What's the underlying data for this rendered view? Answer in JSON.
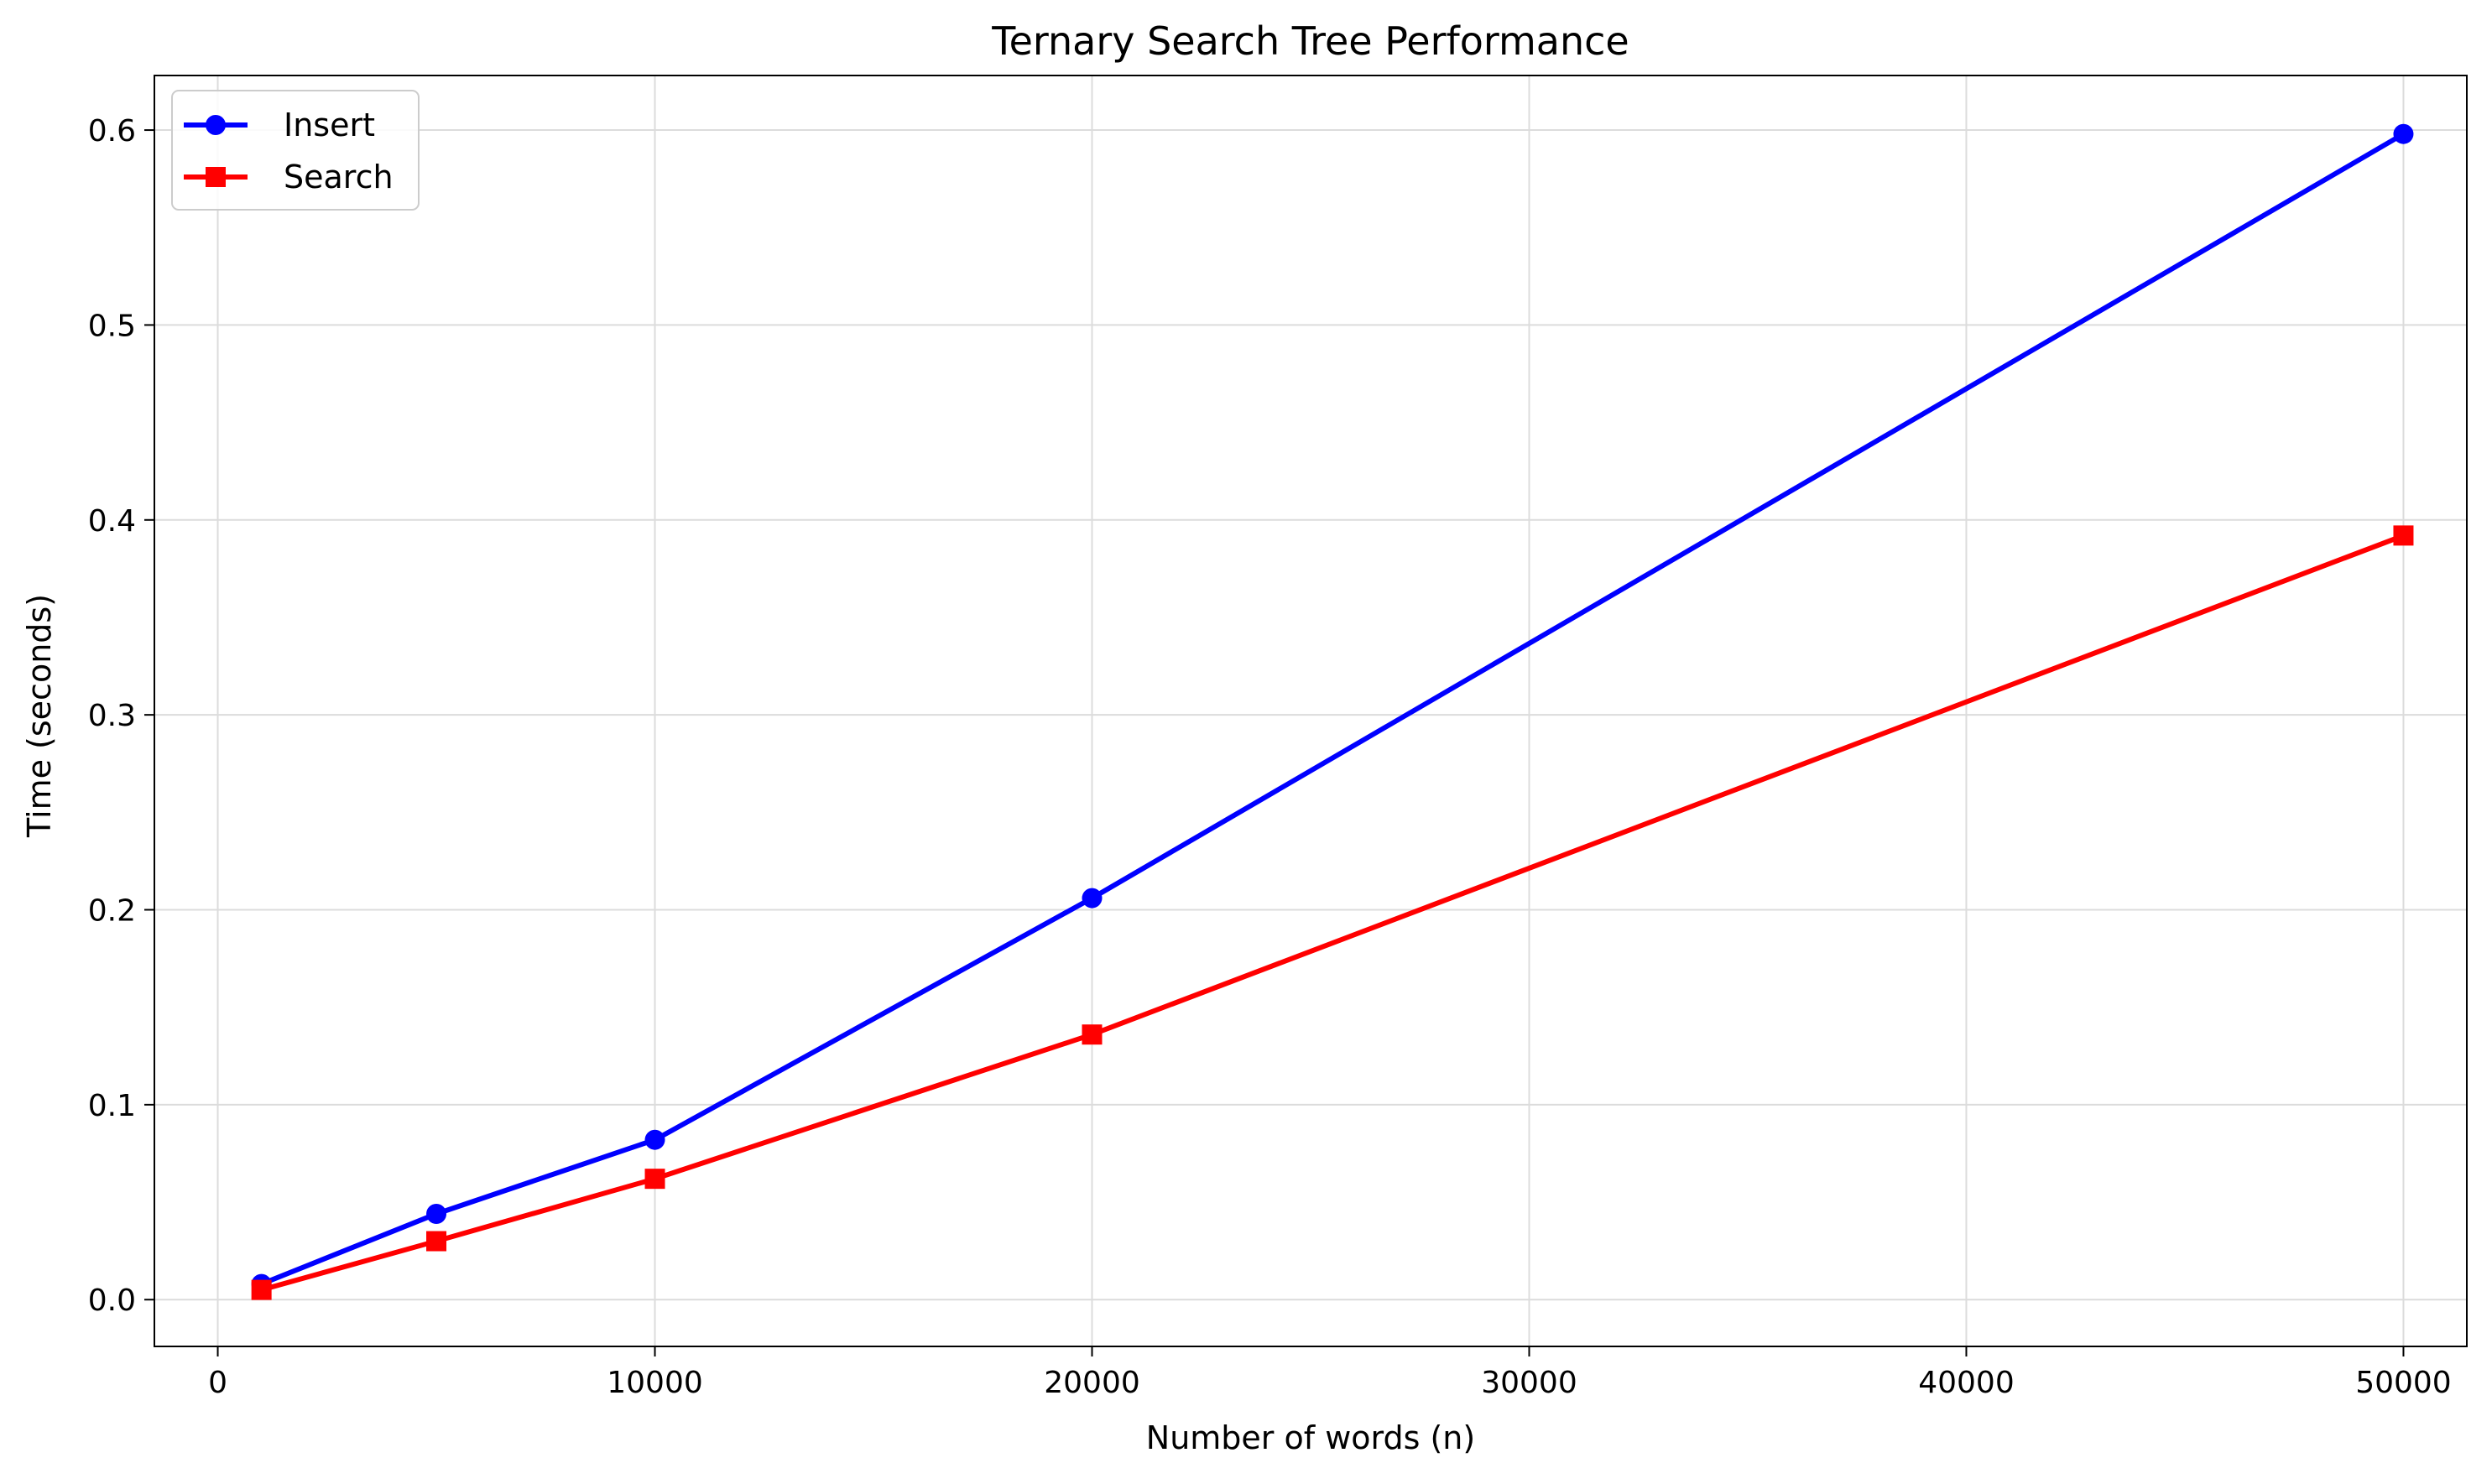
{
  "chart_data": {
    "type": "line",
    "title": "Ternary Search Tree Performance",
    "xlabel": "Number of words (n)",
    "ylabel": "Time (seconds)",
    "xlim": [
      -1450,
      51450
    ],
    "ylim": [
      -0.024,
      0.628
    ],
    "xticks": [
      0,
      10000,
      20000,
      30000,
      40000,
      50000
    ],
    "xtick_labels": [
      "0",
      "10000",
      "20000",
      "30000",
      "40000",
      "50000"
    ],
    "yticks": [
      0.0,
      0.1,
      0.2,
      0.3,
      0.4,
      0.5,
      0.6
    ],
    "ytick_labels": [
      "0.0",
      "0.1",
      "0.2",
      "0.3",
      "0.4",
      "0.5",
      "0.6"
    ],
    "grid": true,
    "legend_position": "top-left",
    "x": [
      1000,
      5000,
      10000,
      20000,
      50000
    ],
    "series": [
      {
        "name": "Insert",
        "color": "#0000ff",
        "marker": "circle",
        "values": [
          0.008,
          0.044,
          0.082,
          0.206,
          0.598
        ]
      },
      {
        "name": "Search",
        "color": "#ff0000",
        "marker": "square",
        "values": [
          0.005,
          0.03,
          0.062,
          0.136,
          0.392
        ]
      }
    ]
  }
}
